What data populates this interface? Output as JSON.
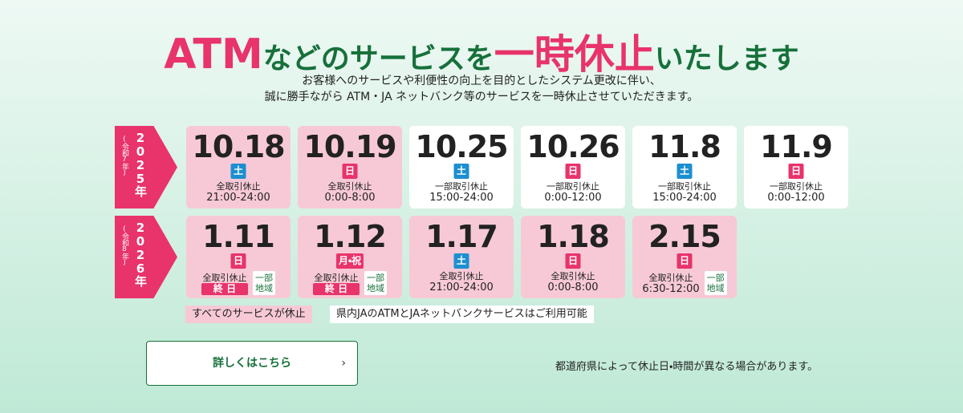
{
  "header": {
    "title": [
      {
        "text": "ATM",
        "color": "#e8336b",
        "size": 52
      },
      {
        "text": "などのサービスを",
        "color": "#16703a",
        "size": 36
      },
      {
        "text": "一時休止",
        "color": "#e8336b",
        "size": 50
      },
      {
        "text": "いたします",
        "color": "#16703a",
        "size": 36
      }
    ],
    "description": [
      "お客様へのサービスや利便性の向上を目的としたシステム更改に伴い、",
      "誠に勝手ながら ATM・JA ネットバンク等のサービスを一時休止させていただきます。"
    ]
  },
  "rows": [
    {
      "year": "2025年",
      "era": "(令和7年)",
      "cards": [
        {
          "date": "10.18",
          "day": "土",
          "day_color": "#1c8fd0",
          "type": "全取引休止",
          "time": "21:00-24:00",
          "color": "#f7c9d6"
        },
        {
          "date": "10.19",
          "day": "日",
          "day_color": "#e8336b",
          "type": "全取引休止",
          "time": "0:00-8:00",
          "color": "#f7c9d6"
        },
        {
          "date": "10.25",
          "day": "土",
          "day_color": "#1c8fd0",
          "type": "一部取引休止",
          "time": "15:00-24:00",
          "color": "#ffffff"
        },
        {
          "date": "10.26",
          "day": "日",
          "day_color": "#e8336b",
          "type": "一部取引休止",
          "time": "0:00-12:00",
          "color": "#ffffff"
        },
        {
          "date": "11.8",
          "day": "土",
          "day_color": "#1c8fd0",
          "type": "一部取引休止",
          "time": "15:00-24:00",
          "color": "#ffffff"
        },
        {
          "date": "11.9",
          "day": "日",
          "day_color": "#e8336b",
          "type": "一部取引休止",
          "time": "0:00-12:00",
          "color": "#ffffff"
        }
      ]
    },
    {
      "year": "2026年",
      "era": "(令和8年)",
      "cards": [
        {
          "date": "1.11",
          "day": "日",
          "day_color": "#e8336b",
          "type": "全取引休止",
          "time": "終 日",
          "time_color": "#e8336b",
          "region": [
            "一部",
            "地域"
          ],
          "color": "#f7c9d6"
        },
        {
          "date": "1.12",
          "day": "月・祝",
          "day_color": "#e8336b",
          "type": "全取引休止",
          "time": "終 日",
          "time_color": "#e8336b",
          "region": [
            "一部",
            "地域"
          ],
          "color": "#f7c9d6"
        },
        {
          "date": "1.17",
          "day": "土",
          "day_color": "#1c8fd0",
          "type": "全取引休止",
          "time": "21:00-24:00",
          "color": "#f7c9d6"
        },
        {
          "date": "1.18",
          "day": "日",
          "day_color": "#e8336b",
          "type": "全取引休止",
          "time": "0:00-8:00",
          "color": "#f7c9d6"
        },
        {
          "date": "2.15",
          "day": "日",
          "day_color": "#e8336b",
          "type": "全取引休止",
          "time": "6:30-12:00",
          "region": [
            "一部",
            "地域"
          ],
          "color": "#f7c9d6"
        }
      ]
    }
  ],
  "legend": [
    {
      "text": "すべてのサービスが休止",
      "color": "#f7c9d6"
    },
    {
      "text": "県内JAのATMとJAネットバンクサービスはご利用可能",
      "color": "#ffffff"
    }
  ],
  "button": "詳しくはこちら",
  "note": "都道府県によって休止日・時間が異なる場合があります。"
}
